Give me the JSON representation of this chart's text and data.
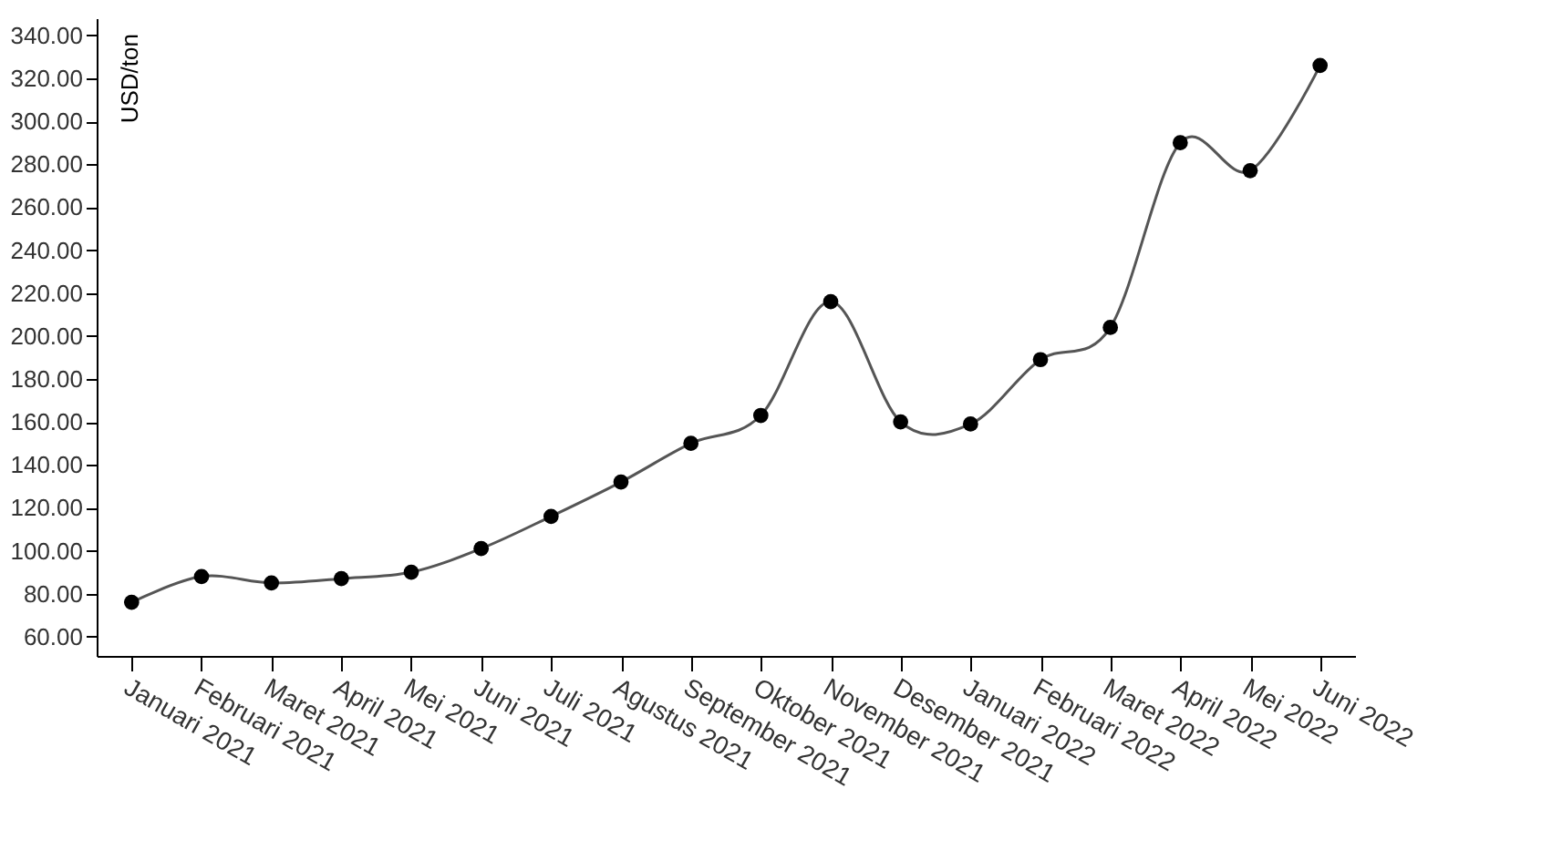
{
  "chart_data": {
    "type": "line",
    "ylabel": "USD/ton",
    "categories": [
      "Januari 2021",
      "Februari 2021",
      "Maret 2021",
      "April 2021",
      "Mei 2021",
      "Juni 2021",
      "Juli 2021",
      "Agustus 2021",
      "September 2021",
      "Oktober 2021",
      "November 2021",
      "Desember 2021",
      "Januari 2022",
      "Februari 2022",
      "Maret 2022",
      "April 2022",
      "Mei 2022",
      "Juni 2022"
    ],
    "series": [
      {
        "color": "#555555",
        "values": [
          76,
          88,
          85,
          87,
          90,
          101,
          116,
          132,
          150,
          163,
          216,
          160,
          159,
          189,
          204,
          290,
          277,
          326
        ]
      }
    ],
    "ylim": [
      51,
      348
    ],
    "yticks": [
      {
        "value": 60,
        "label": "60.00"
      },
      {
        "value": 80,
        "label": "80.00"
      },
      {
        "value": 100,
        "label": "100.00"
      },
      {
        "value": 120,
        "label": "120.00"
      },
      {
        "value": 140,
        "label": "140.00"
      },
      {
        "value": 160,
        "label": "160.00"
      },
      {
        "value": 180,
        "label": "180.00"
      },
      {
        "value": 200,
        "label": "200.00"
      },
      {
        "value": 220,
        "label": "220.00"
      },
      {
        "value": 240,
        "label": "240.00"
      },
      {
        "value": 260,
        "label": "260.00"
      },
      {
        "value": 280,
        "label": "280.00"
      },
      {
        "value": 300,
        "label": "300.00"
      },
      {
        "value": 320,
        "label": "320.00"
      },
      {
        "value": 340,
        "label": "340.00"
      }
    ],
    "marker": "circle"
  }
}
